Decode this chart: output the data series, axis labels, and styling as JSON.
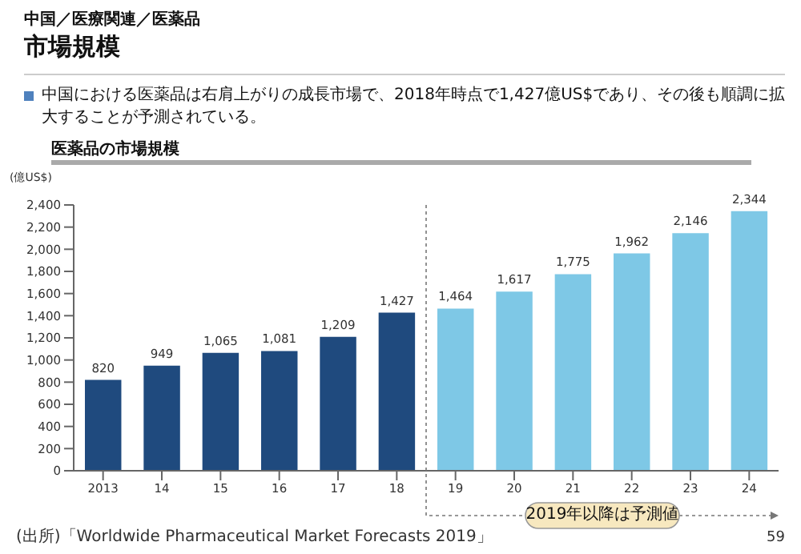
{
  "chart_data": {
    "type": "bar",
    "title": "市場規模",
    "subtitle": "中国における医薬品は右肩上がりの成長市場で、2018年時点で1,427億US$であり、その後も順調に拡大することが予測されている。",
    "ylabel": "(億US$)",
    "annotations": [
      "中国／医療関連／医薬品",
      "医薬品の市場規模",
      "2019年以降は予測値",
      "(出所)「Worldwide Pharmaceutical Market Forecasts 2019」",
      "59"
    ],
    "categories": [
      "2013",
      "14",
      "15",
      "16",
      "17",
      "18",
      "19",
      "20",
      "21",
      "22",
      "23",
      "24"
    ],
    "values": [
      820,
      949,
      1065,
      1081,
      1209,
      1427,
      1464,
      1617,
      1775,
      1962,
      2146,
      2344
    ],
    "value_labels": [
      "820",
      "949",
      "1,065",
      "1,081",
      "1,209",
      "1,427",
      "1,464",
      "1,617",
      "1,775",
      "1,962",
      "2,146",
      "2,344"
    ],
    "colors": [
      "#1f4a7e",
      "#1f4a7e",
      "#1f4a7e",
      "#1f4a7e",
      "#1f4a7e",
      "#1f4a7e",
      "#7ec8e6",
      "#7ec8e6",
      "#7ec8e6",
      "#7ec8e6",
      "#7ec8e6",
      "#7ec8e6"
    ],
    "ylim": [
      0,
      2400
    ],
    "yticks": [
      0,
      200,
      400,
      600,
      800,
      {
        "value": 1000,
        "label": "1,000"
      },
      {
        "value": 1200,
        "label": "1,200"
      },
      {
        "value": 1400,
        "label": "1,400"
      },
      {
        "value": 1600,
        "label": "1,600"
      },
      {
        "value": 1800,
        "label": "1,800"
      },
      {
        "value": 2000,
        "label": "2,000"
      },
      {
        "value": 2200,
        "label": "2,200"
      },
      {
        "value": 2400,
        "label": "2,400"
      }
    ],
    "grid": false,
    "legend": false
  }
}
